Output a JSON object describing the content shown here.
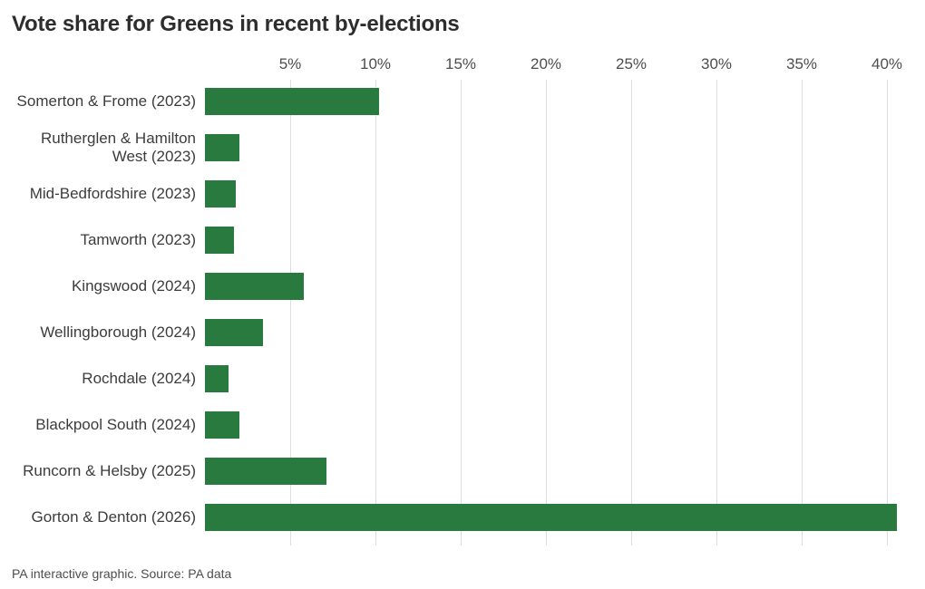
{
  "page": {
    "title": "Vote share for Greens in recent by-elections",
    "source_note": "PA interactive graphic. Source: PA data"
  },
  "chart_data": {
    "type": "bar",
    "orientation": "horizontal",
    "title": "Vote share for Greens in recent by-elections",
    "xlabel": "",
    "ylabel": "",
    "unit": "%",
    "grid": "vertical",
    "legend": "none",
    "x_axis": {
      "min": 0,
      "max": 40,
      "ticks": [
        5,
        10,
        15,
        20,
        25,
        30,
        35,
        40
      ],
      "tick_suffix": "%"
    },
    "bar_color": "#287a3e",
    "gridline_color": "#dedede",
    "categories": [
      "Somerton & Frome (2023)",
      "Rutherglen & Hamilton West (2023)",
      "Mid-Bedfordshire (2023)",
      "Tamworth (2023)",
      "Kingswood (2024)",
      "Wellingborough (2024)",
      "Rochdale (2024)",
      "Blackpool South (2024)",
      "Runcorn & Helsby (2025)",
      "Gorton & Denton (2026)"
    ],
    "label_lines": [
      [
        "Somerton & Frome (2023)"
      ],
      [
        "Rutherglen & Hamilton",
        "West (2023)"
      ],
      [
        "Mid-Bedfordshire (2023)"
      ],
      [
        "Tamworth (2023)"
      ],
      [
        "Kingswood (2024)"
      ],
      [
        "Wellingborough (2024)"
      ],
      [
        "Rochdale (2024)"
      ],
      [
        "Blackpool South (2024)"
      ],
      [
        "Runcorn & Helsby (2025)"
      ],
      [
        "Gorton & Denton (2026)"
      ]
    ],
    "values": [
      10.2,
      2.0,
      1.8,
      1.7,
      5.8,
      3.4,
      1.4,
      2.0,
      7.1,
      40.6
    ]
  }
}
